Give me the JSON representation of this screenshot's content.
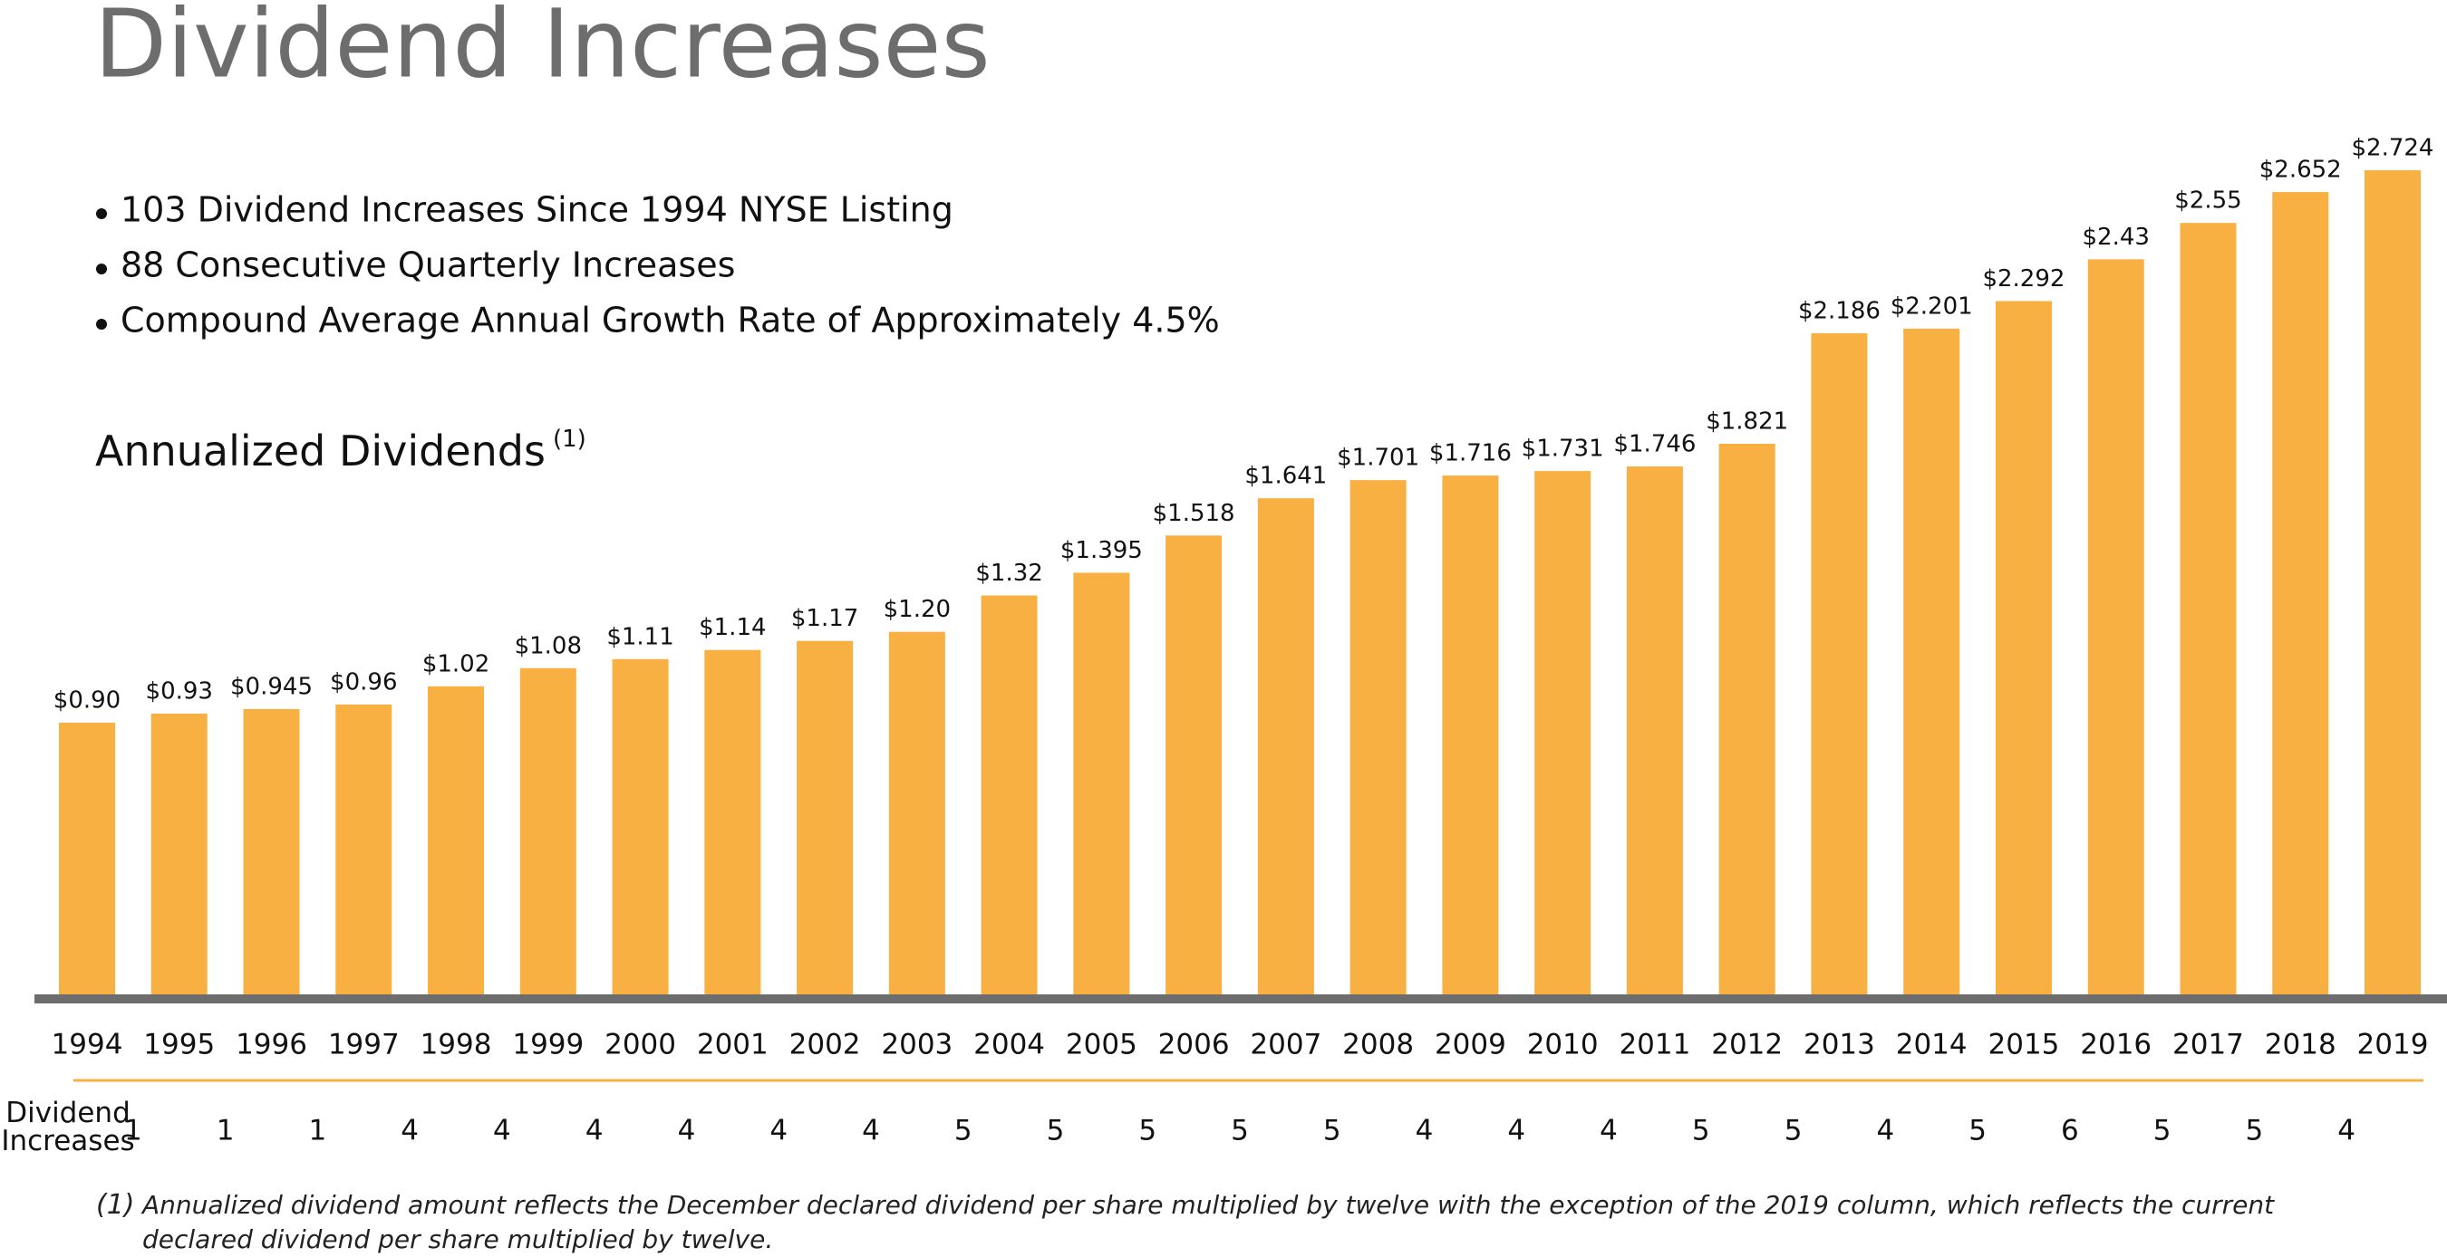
{
  "chart_data": {
    "type": "bar",
    "title": "Dividend Increases",
    "bullets": [
      "103 Dividend Increases Since 1994 NYSE Listing",
      "88 Consecutive Quarterly Increases",
      "Compound Average Annual Growth Rate of Approximately 4.5%"
    ],
    "subtitle": "Annualized Dividends",
    "subtitle_note": "(1)",
    "categories": [
      "1994",
      "1995",
      "1996",
      "1997",
      "1998",
      "1999",
      "2000",
      "2001",
      "2002",
      "2003",
      "2004",
      "2005",
      "2006",
      "2007",
      "2008",
      "2009",
      "2010",
      "2011",
      "2012",
      "2013",
      "2014",
      "2015",
      "2016",
      "2017",
      "2018",
      "2019"
    ],
    "values": [
      0.9,
      0.93,
      0.945,
      0.96,
      1.02,
      1.08,
      1.11,
      1.14,
      1.17,
      1.2,
      1.32,
      1.395,
      1.518,
      1.641,
      1.701,
      1.716,
      1.731,
      1.746,
      1.821,
      2.186,
      2.201,
      2.292,
      2.43,
      2.55,
      2.652,
      2.724
    ],
    "value_labels": [
      "$0.90",
      "$0.93",
      "$0.945",
      "$0.96",
      "$1.02",
      "$1.08",
      "$1.11",
      "$1.14",
      "$1.17",
      "$1.20",
      "$1.32",
      "$1.395",
      "$1.518",
      "$1.641",
      "$1.701",
      "$1.716",
      "$1.731",
      "$1.746",
      "$1.821",
      "$2.186",
      "$2.201",
      "$2.292",
      "$2.43",
      "$2.55",
      "$2.652",
      "$2.724"
    ],
    "color": "#f9b042",
    "increases": {
      "label": "Dividend Increases",
      "values": [
        1,
        1,
        1,
        4,
        4,
        4,
        4,
        4,
        4,
        5,
        5,
        5,
        5,
        5,
        4,
        4,
        4,
        5,
        5,
        4,
        5,
        6,
        5,
        5,
        4
      ]
    },
    "footnote": {
      "marker": "(1)",
      "text": "Annualized dividend amount reflects the December declared dividend per share multiplied by twelve with the exception of the 2019 column, which reflects the current declared dividend per share multiplied by twelve."
    }
  }
}
